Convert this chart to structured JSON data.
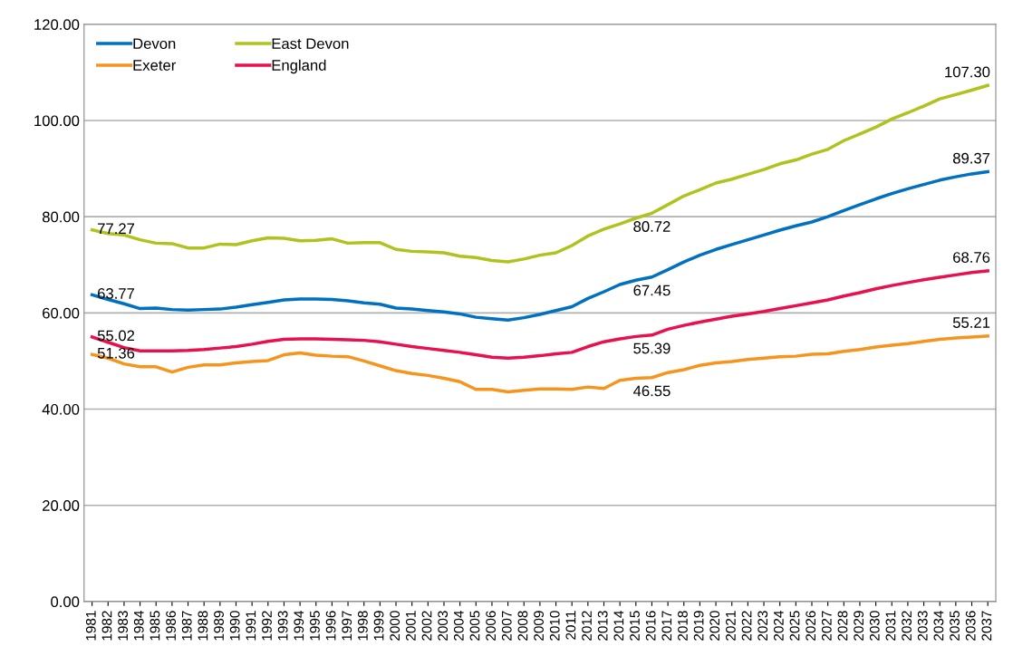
{
  "chart_data": {
    "type": "line",
    "categories": [
      "1981",
      "1982",
      "1983",
      "1984",
      "1985",
      "1986",
      "1987",
      "1988",
      "1989",
      "1990",
      "1991",
      "1992",
      "1993",
      "1994",
      "1995",
      "1996",
      "1997",
      "1998",
      "1999",
      "2000",
      "2001",
      "2002",
      "2003",
      "2004",
      "2005",
      "2006",
      "2007",
      "2008",
      "2009",
      "2010",
      "2011",
      "2012",
      "2013",
      "2014",
      "2015",
      "2016",
      "2017",
      "2018",
      "2019",
      "2020",
      "2021",
      "2022",
      "2023",
      "2024",
      "2025",
      "2026",
      "2027",
      "2028",
      "2029",
      "2030",
      "2031",
      "2032",
      "2033",
      "2034",
      "2035",
      "2036",
      "2037"
    ],
    "series": [
      {
        "name": "Devon",
        "color": "#0070c0",
        "values": [
          63.77,
          62.8,
          61.9,
          60.9,
          61.0,
          60.7,
          60.6,
          60.7,
          60.8,
          61.2,
          61.7,
          62.2,
          62.7,
          62.9,
          62.9,
          62.8,
          62.5,
          62.1,
          61.8,
          61.0,
          60.8,
          60.5,
          60.2,
          59.8,
          59.1,
          58.8,
          58.5,
          59.0,
          59.7,
          60.5,
          61.3,
          63.0,
          64.4,
          65.9,
          66.8,
          67.45,
          69.0,
          70.6,
          72.0,
          73.2,
          74.2,
          75.2,
          76.2,
          77.2,
          78.1,
          78.9,
          80.0,
          81.3,
          82.5,
          83.7,
          84.8,
          85.8,
          86.7,
          87.6,
          88.3,
          88.9,
          89.37
        ],
        "value_labels": [
          "63.77",
          null,
          null,
          null,
          null,
          null,
          null,
          null,
          null,
          null,
          null,
          null,
          null,
          null,
          null,
          null,
          null,
          null,
          null,
          null,
          null,
          null,
          null,
          null,
          null,
          null,
          null,
          null,
          null,
          null,
          null,
          null,
          null,
          null,
          null,
          "67.45",
          null,
          null,
          null,
          null,
          null,
          null,
          null,
          null,
          null,
          null,
          null,
          null,
          null,
          null,
          null,
          null,
          null,
          null,
          null,
          null,
          "89.37"
        ]
      },
      {
        "name": "East Devon",
        "color": "#b0c21e",
        "values": [
          77.27,
          76.5,
          76.2,
          75.2,
          74.5,
          74.4,
          73.5,
          73.5,
          74.3,
          74.2,
          75.0,
          75.6,
          75.5,
          75.0,
          75.1,
          75.4,
          74.5,
          74.6,
          74.6,
          73.2,
          72.8,
          72.7,
          72.5,
          71.8,
          71.5,
          70.9,
          70.6,
          71.2,
          72.0,
          72.5,
          74.0,
          76.0,
          77.4,
          78.5,
          79.7,
          80.72,
          82.5,
          84.3,
          85.6,
          87.0,
          87.8,
          88.8,
          89.8,
          91.0,
          91.8,
          93.0,
          94.0,
          95.8,
          97.2,
          98.6,
          100.3,
          101.6,
          103.0,
          104.5,
          105.4,
          106.3,
          107.3
        ],
        "value_labels": [
          "77.27",
          null,
          null,
          null,
          null,
          null,
          null,
          null,
          null,
          null,
          null,
          null,
          null,
          null,
          null,
          null,
          null,
          null,
          null,
          null,
          null,
          null,
          null,
          null,
          null,
          null,
          null,
          null,
          null,
          null,
          null,
          null,
          null,
          null,
          null,
          "80.72",
          null,
          null,
          null,
          null,
          null,
          null,
          null,
          null,
          null,
          null,
          null,
          null,
          null,
          null,
          null,
          null,
          null,
          null,
          null,
          null,
          "107.30"
        ]
      },
      {
        "name": "Exeter",
        "color": "#f7941d",
        "values": [
          51.36,
          50.6,
          49.4,
          48.8,
          48.8,
          47.7,
          48.7,
          49.2,
          49.2,
          49.6,
          49.9,
          50.1,
          51.3,
          51.7,
          51.2,
          51.0,
          50.9,
          50.0,
          49.0,
          48.0,
          47.4,
          47.0,
          46.4,
          45.7,
          44.1,
          44.1,
          43.6,
          43.9,
          44.2,
          44.2,
          44.1,
          44.6,
          44.3,
          46.0,
          46.4,
          46.55,
          47.6,
          48.2,
          49.1,
          49.6,
          49.9,
          50.3,
          50.6,
          50.9,
          51.0,
          51.4,
          51.5,
          52.0,
          52.4,
          52.9,
          53.3,
          53.6,
          54.1,
          54.5,
          54.8,
          55.0,
          55.21
        ],
        "value_labels": [
          "51.36",
          null,
          null,
          null,
          null,
          null,
          null,
          null,
          null,
          null,
          null,
          null,
          null,
          null,
          null,
          null,
          null,
          null,
          null,
          null,
          null,
          null,
          null,
          null,
          null,
          null,
          null,
          null,
          null,
          null,
          null,
          null,
          null,
          null,
          null,
          "46.55",
          null,
          null,
          null,
          null,
          null,
          null,
          null,
          null,
          null,
          null,
          null,
          null,
          null,
          null,
          null,
          null,
          null,
          null,
          null,
          null,
          "55.21"
        ]
      },
      {
        "name": "England",
        "color": "#e8114e",
        "values": [
          55.02,
          53.9,
          52.8,
          52.1,
          52.1,
          52.1,
          52.2,
          52.4,
          52.7,
          53.0,
          53.5,
          54.1,
          54.5,
          54.6,
          54.6,
          54.5,
          54.4,
          54.3,
          54.0,
          53.5,
          53.0,
          52.6,
          52.2,
          51.8,
          51.3,
          50.8,
          50.6,
          50.8,
          51.1,
          51.5,
          51.8,
          53.0,
          54.0,
          54.6,
          55.1,
          55.39,
          56.6,
          57.4,
          58.1,
          58.7,
          59.3,
          59.8,
          60.3,
          60.9,
          61.5,
          62.1,
          62.7,
          63.5,
          64.2,
          65.0,
          65.7,
          66.3,
          66.9,
          67.4,
          67.9,
          68.4,
          68.76
        ],
        "value_labels": [
          "55.02",
          null,
          null,
          null,
          null,
          null,
          null,
          null,
          null,
          null,
          null,
          null,
          null,
          null,
          null,
          null,
          null,
          null,
          null,
          null,
          null,
          null,
          null,
          null,
          null,
          null,
          null,
          null,
          null,
          null,
          null,
          null,
          null,
          null,
          null,
          "55.39",
          null,
          null,
          null,
          null,
          null,
          null,
          null,
          null,
          null,
          null,
          null,
          null,
          null,
          null,
          null,
          null,
          null,
          null,
          null,
          null,
          "68.76"
        ]
      }
    ],
    "ylim": [
      0,
      120
    ],
    "yticks": [
      {
        "value": 0,
        "label": "0.00"
      },
      {
        "value": 20,
        "label": "20.00"
      },
      {
        "value": 40,
        "label": "40.00"
      },
      {
        "value": 60,
        "label": "60.00"
      },
      {
        "value": 80,
        "label": "80.00"
      },
      {
        "value": 100,
        "label": "100.00"
      },
      {
        "value": 120,
        "label": "120.00"
      }
    ],
    "grid": "y",
    "legend": "top left",
    "marker": "none",
    "line_style": "solid"
  }
}
